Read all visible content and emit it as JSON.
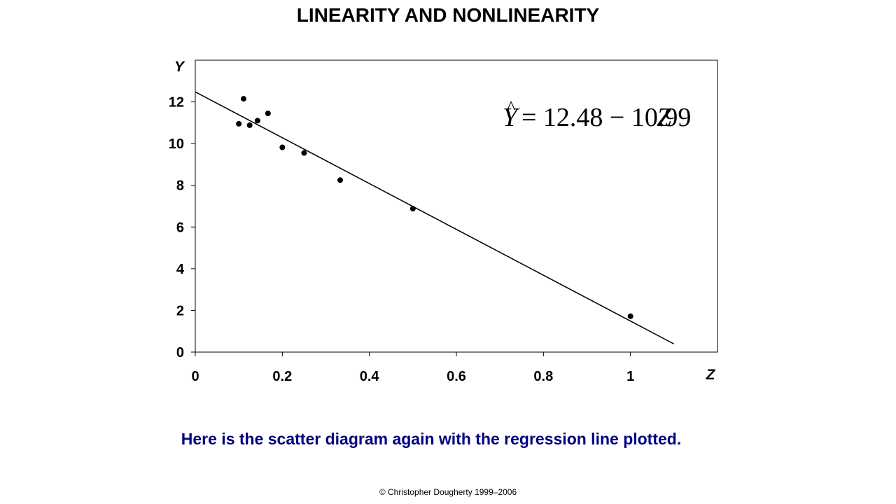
{
  "slide": {
    "title": "LINEARITY AND NONLINEARITY",
    "caption": "Here is the scatter diagram again with the regression line plotted.",
    "copyright": "© Christopher Dougherty 1999–2006"
  },
  "chart_data": {
    "type": "scatter",
    "title": "",
    "xlabel": "Z",
    "ylabel": "Y",
    "xlim": [
      0,
      1.2
    ],
    "ylim": [
      0,
      14
    ],
    "x_ticks": [
      0,
      0.2,
      0.4,
      0.6,
      0.8,
      1
    ],
    "x_tick_labels": [
      "0",
      "0.2",
      "0.4",
      "0.6",
      "0.8",
      "1"
    ],
    "y_ticks": [
      0,
      2,
      4,
      6,
      8,
      10,
      12
    ],
    "y_tick_labels": [
      "0",
      "2",
      "4",
      "6",
      "8",
      "10",
      "12"
    ],
    "grid": false,
    "points": [
      {
        "x": 0.1,
        "y": 10.95
      },
      {
        "x": 0.111,
        "y": 12.15
      },
      {
        "x": 0.125,
        "y": 10.88
      },
      {
        "x": 0.143,
        "y": 11.1
      },
      {
        "x": 0.167,
        "y": 11.45
      },
      {
        "x": 0.2,
        "y": 9.82
      },
      {
        "x": 0.25,
        "y": 9.55
      },
      {
        "x": 0.333,
        "y": 8.25
      },
      {
        "x": 0.5,
        "y": 6.88
      },
      {
        "x": 1.0,
        "y": 1.72
      }
    ],
    "regression_line": {
      "intercept": 12.48,
      "slope": -10.99,
      "x_range": [
        0,
        1.1
      ]
    },
    "equation": {
      "yhat": "Y",
      "rhs": "= 12.48 − 10.99",
      "variable": "Z"
    },
    "colors": {
      "points": "#000000",
      "line": "#000000",
      "axes": "#000000"
    }
  }
}
